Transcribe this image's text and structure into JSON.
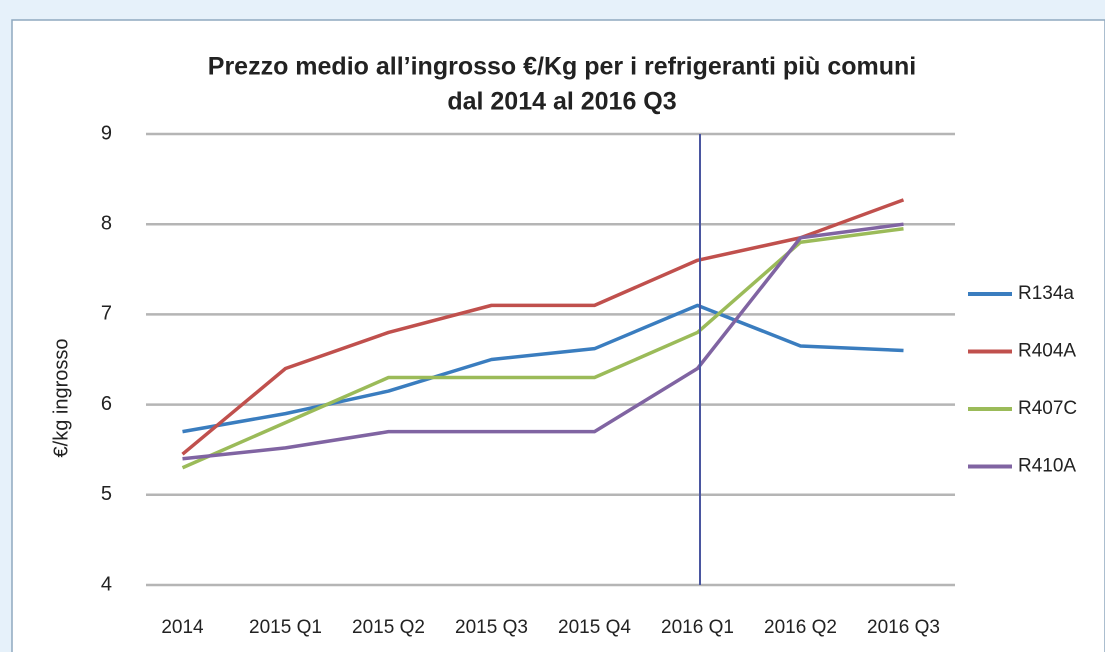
{
  "chart_data": {
    "type": "line",
    "title": [
      "Prezzo medio all’ingrosso €/Kg per i refrigeranti più comuni",
      "dal 2014 al 2016 Q3"
    ],
    "y_label": "€/kg ingrosso",
    "categories": [
      "2014",
      "2015 Q1",
      "2015 Q2",
      "2015 Q3",
      "2015 Q4",
      "2016 Q1",
      "2016 Q2",
      "2016 Q3"
    ],
    "series": [
      {
        "name": "R134a",
        "color": "#3a7dbf",
        "values": [
          5.7,
          5.9,
          6.15,
          6.5,
          6.62,
          7.1,
          6.65,
          6.6
        ]
      },
      {
        "name": "R404A",
        "color": "#c0504d",
        "values": [
          5.45,
          6.4,
          6.8,
          7.1,
          7.1,
          7.6,
          7.85,
          8.27
        ]
      },
      {
        "name": "R407C",
        "color": "#9bbb59",
        "values": [
          5.3,
          5.8,
          6.3,
          6.3,
          6.3,
          6.8,
          7.8,
          7.95
        ]
      },
      {
        "name": "R410A",
        "color": "#8064a2",
        "values": [
          5.4,
          5.52,
          5.7,
          5.7,
          5.7,
          6.4,
          7.85,
          8.0
        ]
      }
    ],
    "ylim": [
      4,
      9
    ],
    "yticks": [
      4,
      5,
      6,
      7,
      8,
      9
    ],
    "grid": true,
    "legend": "right"
  }
}
